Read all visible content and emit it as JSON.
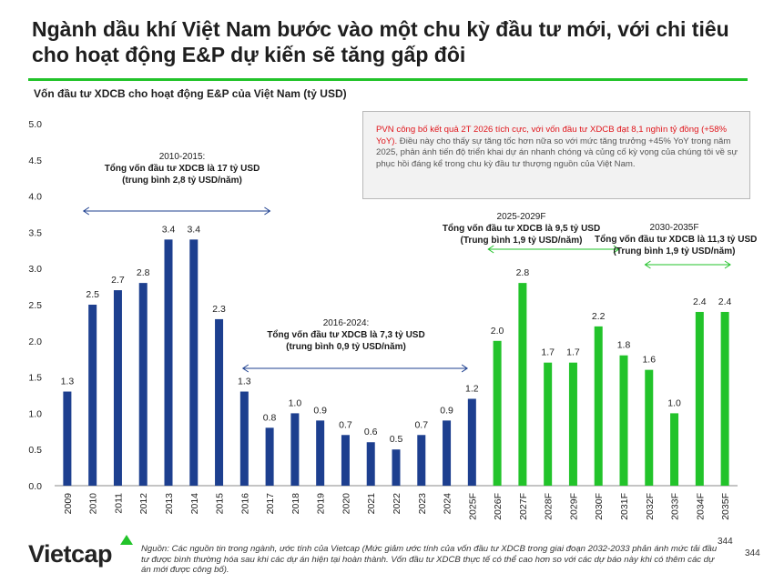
{
  "title": "Ngành dầu khí Việt Nam bước vào một chu kỳ đầu tư mới, với chi tiêu cho hoạt động E&P dự kiến sẽ tăng gấp đôi",
  "chart_title": "Vốn đầu tư XDCB cho hoạt động E&P của Việt Nam (tỷ USD)",
  "note": {
    "highlight": "PVN công bố kết quả 2T 2026 tích cực, với vốn đầu tư XDCB đạt 8,1 nghìn tỷ đồng (+58% YoY).",
    "rest": " Điều này cho thấy sự tăng tốc hơn nữa so với mức tăng trưởng +45% YoY trong năm 2025, phản ánh tiến độ triển khai dự án nhanh chóng và củng cố kỳ vọng của chúng tôi về sự phục hồi đáng kể trong chu kỳ đầu tư thượng nguồn của Việt Nam."
  },
  "annotations": [
    {
      "period": "2010-2015:",
      "line1": "Tổng vốn đầu tư XDCB là 17 tỷ USD",
      "line2": "(trung bình 2,8 tỷ USD/năm)",
      "arrow_color": "#1d3f8f"
    },
    {
      "period": "2016-2024:",
      "line1": "Tổng vốn đầu tư XDCB là 7,3 tỷ USD",
      "line2": "(trung bình 0,9 tỷ USD/năm)",
      "arrow_color": "#1d3f8f"
    },
    {
      "period": "2025-2029F",
      "line1": "Tổng vốn đầu tư XDCB là 9,5 tỷ USD",
      "line2": "(Trung bình 1,9 tỷ USD/năm)",
      "arrow_color": "#22c32a"
    },
    {
      "period": "2030-2035F",
      "line1": "Tổng vốn đầu tư XDCB là 11,3 tỷ USD",
      "line2": "(Trung bình 1,9 tỷ USD/năm)",
      "arrow_color": "#22c32a"
    }
  ],
  "logo": "Vietcap",
  "source": "Nguồn: Các nguồn tin trong ngành, ước tính của Vietcap (Mức giảm ước tính của vốn đầu tư XDCB trong giai đoạn 2032-2033 phản ánh mức tải đầu tư được bình thường hóa sau khi các dự án hiện tại hoàn thành. Vốn đầu tư XDCB thực tế có thể cao hơn so với các dự báo này khi có thêm các dự án mới được công bố).",
  "page_numbers": [
    "344",
    "344"
  ],
  "colors": {
    "historical": "#1d3f8f",
    "forecast": "#22c32a",
    "accent": "#22c32a",
    "note_highlight": "#e0151b"
  },
  "chart_data": {
    "type": "bar",
    "categories": [
      "2009",
      "2010",
      "2011",
      "2012",
      "2013",
      "2014",
      "2015",
      "2016",
      "2017",
      "2018",
      "2019",
      "2020",
      "2021",
      "2022",
      "2023",
      "2024",
      "2025F",
      "2026F",
      "2027F",
      "2028F",
      "2029F",
      "2030F",
      "2031F",
      "2032F",
      "2033F",
      "2034F",
      "2035F"
    ],
    "values": [
      1.3,
      2.5,
      2.7,
      2.8,
      3.4,
      3.4,
      2.3,
      1.3,
      0.8,
      1.0,
      0.9,
      0.7,
      0.6,
      0.5,
      0.7,
      0.9,
      1.2,
      2.0,
      2.8,
      1.7,
      1.7,
      2.2,
      1.8,
      1.6,
      1.0,
      2.4,
      2.4
    ],
    "data_labels": [
      "1.3",
      "2.5",
      "2.7",
      "2.8",
      "3.4",
      "3.4",
      "2.3",
      "1.3",
      "0.8",
      "1.0",
      "0.9",
      "0.7",
      "0.6",
      "0.5",
      "0.7",
      "0.9",
      "1.2",
      "2.0",
      "2.8",
      "1.7",
      "1.7",
      "2.2",
      "1.8",
      "1.6",
      "1.0",
      "2.4",
      "2.4"
    ],
    "forecast_from_index": 17,
    "ylim": [
      0,
      5.0
    ],
    "yticks": [
      "0.0",
      "0.5",
      "1.0",
      "1.5",
      "2.0",
      "2.5",
      "3.0",
      "3.5",
      "4.0",
      "4.5",
      "5.0"
    ],
    "grid": false
  }
}
